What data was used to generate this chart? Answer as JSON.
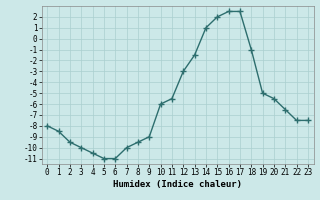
{
  "x": [
    0,
    1,
    2,
    3,
    4,
    5,
    6,
    7,
    8,
    9,
    10,
    11,
    12,
    13,
    14,
    15,
    16,
    17,
    18,
    19,
    20,
    21,
    22,
    23
  ],
  "y": [
    -8,
    -8.5,
    -9.5,
    -10,
    -10.5,
    -11,
    -11,
    -10,
    -9.5,
    -9,
    -6,
    -5.5,
    -3,
    -1.5,
    1,
    2,
    2.5,
    2.5,
    -1,
    -5,
    -5.5,
    -6.5,
    -7.5,
    -7.5
  ],
  "line_color": "#2d6e6e",
  "marker": "+",
  "marker_size": 4,
  "lw": 1.0,
  "bg_color": "#cce8e8",
  "grid_color": "#aacfcf",
  "xlabel": "Humidex (Indice chaleur)",
  "xlim": [
    -0.5,
    23.5
  ],
  "ylim": [
    -11.5,
    3.0
  ],
  "yticks": [
    2,
    1,
    0,
    -1,
    -2,
    -3,
    -4,
    -5,
    -6,
    -7,
    -8,
    -9,
    -10,
    -11
  ],
  "xtick_labels": [
    "0",
    "1",
    "2",
    "3",
    "4",
    "5",
    "6",
    "7",
    "8",
    "9",
    "10",
    "11",
    "12",
    "13",
    "14",
    "15",
    "16",
    "17",
    "18",
    "19",
    "20",
    "21",
    "22",
    "23"
  ],
  "xlabel_fontsize": 6.5,
  "tick_fontsize": 5.5
}
